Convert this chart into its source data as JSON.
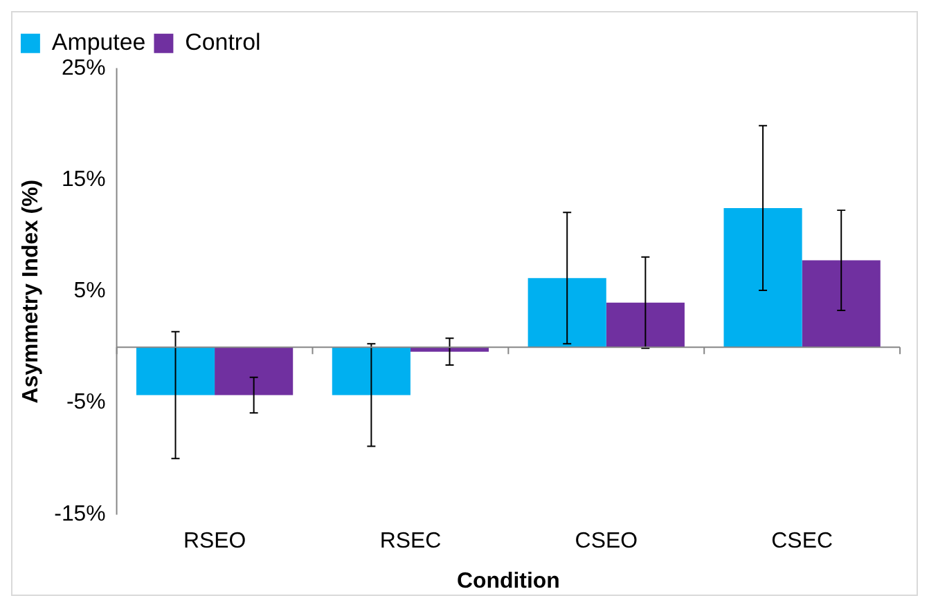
{
  "chart_data": {
    "type": "bar",
    "xlabel": "Condition",
    "ylabel": "Asymmetry Index (%)",
    "categories": [
      "RSEO",
      "RSEC",
      "CSEO",
      "CSEC"
    ],
    "series": [
      {
        "name": "Amputee",
        "color": "#00b0f0",
        "values": [
          -4.3,
          -4.3,
          6.2,
          12.5
        ],
        "errors": [
          5.7,
          4.6,
          5.9,
          7.4
        ]
      },
      {
        "name": "Control",
        "color": "#7030a0",
        "values": [
          -4.3,
          -0.4,
          4.0,
          7.8
        ],
        "errors": [
          1.6,
          1.2,
          4.1,
          4.5
        ]
      }
    ],
    "ylim": [
      -15,
      25
    ],
    "yticks": [
      {
        "value": -15,
        "label": "-15%"
      },
      {
        "value": -5,
        "label": "-5%"
      },
      {
        "value": 5,
        "label": "5%"
      },
      {
        "value": 15,
        "label": "15%"
      },
      {
        "value": 25,
        "label": "25%"
      }
    ],
    "grid": false,
    "legend": "top left"
  }
}
